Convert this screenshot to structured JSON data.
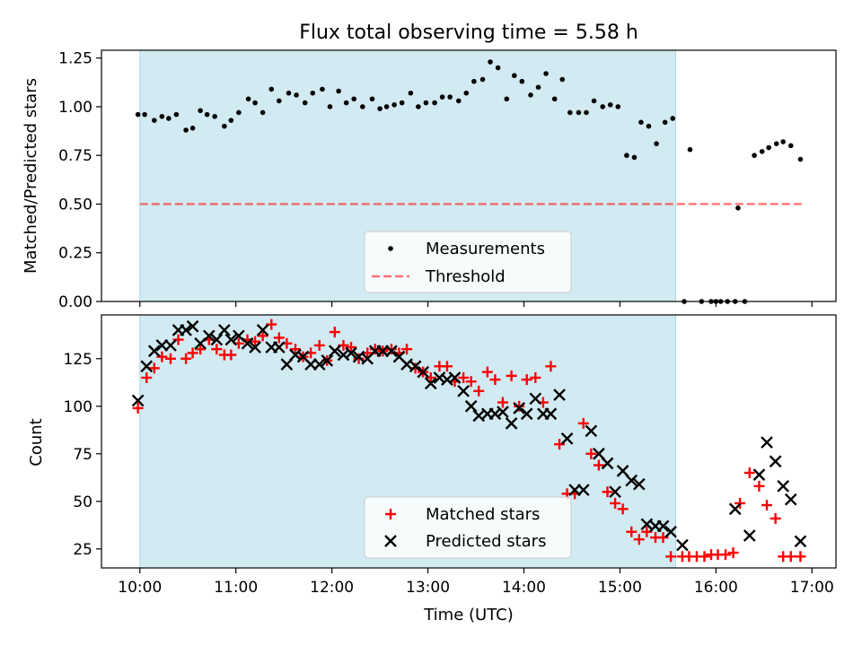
{
  "figure": {
    "title": "Flux total observing time = 5.58 h",
    "xlabel": "Time (UTC)",
    "colors": {
      "span": "#add8e6",
      "measurements": "#000000",
      "threshold": "#ff0000",
      "matched": "#ff0000",
      "predicted": "#000000"
    }
  },
  "chart_data": [
    {
      "type": "scatter",
      "title": "Flux total observing time = 5.58 h",
      "xlabel": "Time (UTC)",
      "ylabel": "Matched/Predicted stars",
      "x_unit": "hours UTC",
      "xlim": [
        9.6,
        17.25
      ],
      "ylim": [
        0,
        1.29
      ],
      "yticks": [
        0,
        0.25,
        0.5,
        0.75,
        1.0,
        1.25
      ],
      "ytick_labels": [
        "0.00",
        "0.25",
        "0.50",
        "0.75",
        "1.00",
        "1.25"
      ],
      "xticks": [
        10,
        11,
        12,
        13,
        14,
        15,
        16,
        17
      ],
      "xtick_labels": [],
      "observing_span": [
        10.0,
        15.58
      ],
      "legend": {
        "placement": "lower center",
        "entries": [
          "Measurements",
          "Threshold"
        ]
      },
      "threshold": {
        "name": "Threshold",
        "y": 0.5,
        "x": [
          10.0,
          16.9
        ],
        "style": "dashed"
      },
      "series": [
        {
          "name": "Measurements",
          "marker": "dot",
          "x": [
            9.98,
            10.05,
            10.15,
            10.23,
            10.3,
            10.38,
            10.48,
            10.55,
            10.63,
            10.7,
            10.78,
            10.88,
            10.95,
            11.03,
            11.13,
            11.2,
            11.28,
            11.37,
            11.45,
            11.55,
            11.63,
            11.72,
            11.8,
            11.9,
            11.98,
            12.07,
            12.15,
            12.23,
            12.32,
            12.42,
            12.5,
            12.57,
            12.65,
            12.73,
            12.82,
            12.9,
            12.98,
            13.07,
            13.15,
            13.23,
            13.32,
            13.4,
            13.48,
            13.57,
            13.65,
            13.73,
            13.82,
            13.9,
            13.98,
            14.07,
            14.15,
            14.23,
            14.32,
            14.4,
            14.48,
            14.57,
            14.65,
            14.73,
            14.82,
            14.9,
            14.98,
            15.07,
            15.15,
            15.22,
            15.3,
            15.38,
            15.47,
            15.55,
            15.67,
            15.73,
            15.85,
            15.95,
            16.0,
            16.05,
            16.12,
            16.2,
            16.23,
            16.3,
            16.4,
            16.48,
            16.55,
            16.63,
            16.7,
            16.78,
            16.88
          ],
          "y": [
            0.96,
            0.96,
            0.93,
            0.95,
            0.94,
            0.96,
            0.88,
            0.89,
            0.98,
            0.96,
            0.95,
            0.9,
            0.93,
            0.97,
            1.04,
            1.02,
            0.97,
            1.09,
            1.03,
            1.07,
            1.06,
            1.02,
            1.07,
            1.09,
            1.0,
            1.08,
            1.02,
            1.04,
            1.0,
            1.04,
            0.99,
            1.0,
            1.01,
            1.02,
            1.07,
            1.0,
            1.02,
            1.02,
            1.05,
            1.05,
            1.03,
            1.07,
            1.13,
            1.14,
            1.23,
            1.2,
            1.04,
            1.16,
            1.13,
            1.06,
            1.1,
            1.17,
            1.04,
            1.14,
            0.97,
            0.97,
            0.97,
            1.03,
            1.0,
            1.01,
            1.0,
            0.75,
            0.74,
            0.92,
            0.9,
            0.81,
            0.92,
            0.94,
            0.0,
            0.78,
            0.0,
            0.0,
            0.0,
            0.0,
            0.0,
            0.0,
            0.48,
            0.0,
            0.75,
            0.77,
            0.79,
            0.81,
            0.82,
            0.8,
            0.73
          ]
        }
      ]
    },
    {
      "type": "scatter",
      "xlabel": "Time (UTC)",
      "ylabel": "Count",
      "x_unit": "hours UTC",
      "xlim": [
        9.6,
        17.25
      ],
      "ylim": [
        15,
        148
      ],
      "yticks": [
        25,
        50,
        75,
        100,
        125
      ],
      "ytick_labels": [
        "25",
        "50",
        "75",
        "100",
        "125"
      ],
      "xticks": [
        10,
        11,
        12,
        13,
        14,
        15,
        16,
        17
      ],
      "xtick_labels": [
        "10:00",
        "11:00",
        "12:00",
        "13:00",
        "14:00",
        "15:00",
        "16:00",
        "17:00"
      ],
      "observing_span": [
        10.0,
        15.58
      ],
      "legend": {
        "placement": "lower center",
        "entries": [
          "Matched stars",
          "Predicted stars"
        ]
      },
      "series": [
        {
          "name": "Matched stars",
          "marker": "plus",
          "x": [
            9.98,
            10.07,
            10.15,
            10.23,
            10.32,
            10.4,
            10.48,
            10.55,
            10.63,
            10.72,
            10.8,
            10.88,
            10.95,
            11.03,
            11.12,
            11.2,
            11.28,
            11.37,
            11.45,
            11.53,
            11.62,
            11.7,
            11.78,
            11.87,
            11.95,
            12.03,
            12.12,
            12.2,
            12.28,
            12.37,
            12.45,
            12.53,
            12.62,
            12.7,
            12.78,
            12.87,
            12.95,
            13.03,
            13.12,
            13.2,
            13.28,
            13.37,
            13.45,
            13.53,
            13.62,
            13.7,
            13.78,
            13.87,
            13.95,
            14.03,
            14.12,
            14.2,
            14.28,
            14.37,
            14.45,
            14.53,
            14.62,
            14.7,
            14.78,
            14.87,
            14.95,
            15.03,
            15.12,
            15.2,
            15.28,
            15.37,
            15.45,
            15.53,
            15.62,
            15.7,
            15.78,
            15.87,
            15.95,
            16.03,
            16.12,
            16.2,
            16.28,
            16.37,
            16.45,
            16.53,
            16.62,
            16.7,
            16.78,
            16.88
          ],
          "y": [
            99,
            115,
            120,
            126,
            125,
            135,
            125,
            128,
            130,
            135,
            130,
            127,
            127,
            133,
            135,
            134,
            137,
            143,
            136,
            133,
            130,
            126,
            128,
            132,
            124,
            139,
            132,
            131,
            125,
            128,
            130,
            129,
            130,
            128,
            130,
            120,
            118,
            115,
            121,
            121,
            113,
            115,
            113,
            108,
            118,
            114,
            102,
            116,
            100,
            114,
            115,
            102,
            121,
            80,
            54,
            54,
            91,
            75,
            69,
            55,
            49,
            46,
            34,
            30,
            34,
            31,
            31,
            21,
            21,
            21,
            21,
            21,
            22,
            22,
            22,
            23,
            49,
            65,
            58,
            48,
            41,
            21,
            21,
            21
          ],
          "x_override": [
            9.98,
            10.07,
            10.15,
            10.23,
            10.32,
            10.4,
            10.48,
            10.55,
            10.63,
            10.72,
            10.8,
            10.88,
            10.95,
            11.03,
            11.12,
            11.2,
            11.28,
            11.37,
            11.45,
            11.53,
            11.62,
            11.7,
            11.78,
            11.87,
            11.95,
            12.03,
            12.12,
            12.2,
            12.28,
            12.37,
            12.45,
            12.53,
            12.62,
            12.7,
            12.78,
            12.87,
            12.95,
            13.03,
            13.12,
            13.2,
            13.28,
            13.37,
            13.45,
            13.53,
            13.62,
            13.7,
            13.78,
            13.87,
            13.95,
            14.03,
            14.12,
            14.2,
            14.28,
            14.37,
            14.45,
            14.53,
            14.62,
            14.7,
            14.78,
            14.87,
            14.95,
            15.03,
            15.12,
            15.2,
            15.28,
            15.37,
            15.45,
            15.53,
            15.65,
            15.72,
            15.8,
            15.88,
            15.95,
            16.02,
            16.1,
            16.18,
            16.25,
            16.35,
            16.45,
            16.53,
            16.62,
            16.7,
            16.78,
            16.88
          ]
        },
        {
          "name": "Predicted stars",
          "marker": "x",
          "x": [
            9.98,
            10.07,
            10.15,
            10.23,
            10.32,
            10.4,
            10.48,
            10.55,
            10.63,
            10.72,
            10.8,
            10.88,
            10.95,
            11.03,
            11.12,
            11.2,
            11.28,
            11.37,
            11.45,
            11.53,
            11.62,
            11.7,
            11.78,
            11.87,
            11.95,
            12.03,
            12.12,
            12.2,
            12.28,
            12.37,
            12.45,
            12.53,
            12.62,
            12.7,
            12.78,
            12.87,
            12.95,
            13.03,
            13.12,
            13.2,
            13.28,
            13.37,
            13.45,
            13.53,
            13.62,
            13.7,
            13.78,
            13.87,
            13.95,
            14.03,
            14.12,
            14.2,
            14.28,
            14.37,
            14.45,
            14.53,
            14.62,
            14.7,
            14.78,
            14.87,
            14.95,
            15.03,
            15.12,
            15.2,
            15.28,
            15.37,
            15.45,
            15.53,
            15.65,
            16.2,
            16.35,
            16.45,
            16.53,
            16.62,
            16.7,
            16.78,
            16.88
          ],
          "y": [
            103,
            121,
            129,
            132,
            132,
            140,
            140,
            142,
            133,
            137,
            135,
            140,
            135,
            137,
            133,
            131,
            140,
            131,
            131,
            122,
            127,
            126,
            122,
            122,
            124,
            129,
            127,
            128,
            126,
            125,
            129,
            129,
            129,
            126,
            122,
            121,
            118,
            112,
            115,
            114,
            115,
            108,
            100,
            95,
            96,
            96,
            97,
            91,
            99,
            96,
            104,
            96,
            96,
            106,
            83,
            56,
            56,
            87,
            75,
            70,
            55,
            66,
            61,
            59,
            38,
            37,
            37,
            34,
            27,
            46,
            32,
            64,
            81,
            71,
            58,
            51,
            29
          ]
        }
      ]
    }
  ]
}
